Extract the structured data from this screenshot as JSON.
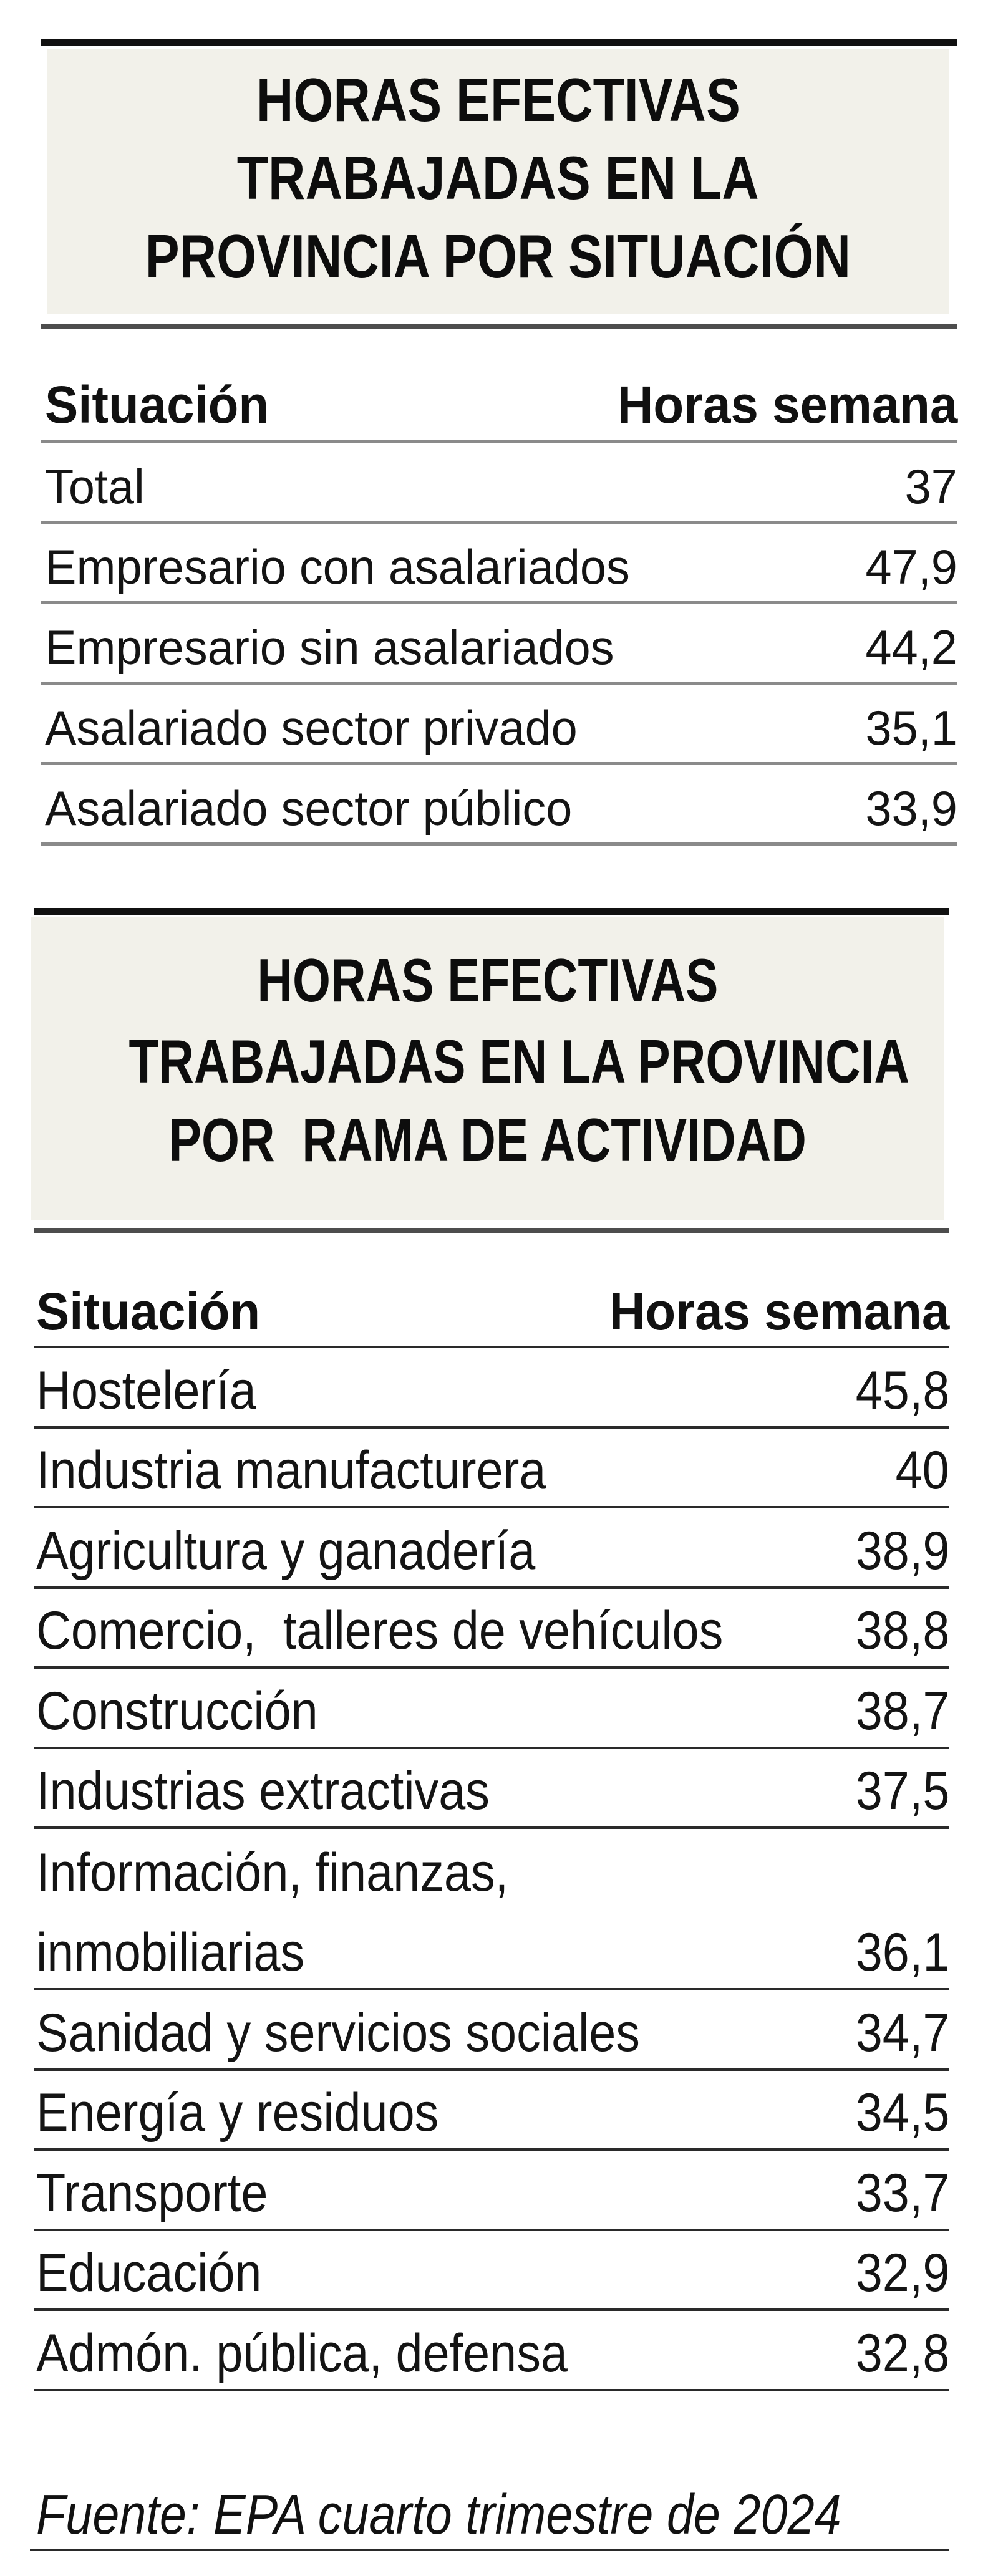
{
  "table_situacion": {
    "title_lines": [
      "HORAS EFECTIVAS",
      "TRABAJADAS EN LA",
      "PROVINCIA POR SITUACIÓN"
    ],
    "col_label": "Situación",
    "col_value": "Horas semana",
    "rows": [
      {
        "label": "Total",
        "value": "37"
      },
      {
        "label": "Empresario con asalariados",
        "value": "47,9"
      },
      {
        "label": "Empresario sin asalariados",
        "value": "44,2"
      },
      {
        "label": "Asalariado sector privado",
        "value": "35,1"
      },
      {
        "label": "Asalariado sector público",
        "value": "33,9"
      }
    ]
  },
  "table_rama": {
    "title_lines": [
      "HORAS EFECTIVAS",
      "TRABAJADAS EN LA PROVINCIA",
      "POR  RAMA DE ACTIVIDAD"
    ],
    "col_label": "Situación",
    "col_value": "Horas semana",
    "rows": [
      {
        "label": "Hostelería",
        "value": "45,8"
      },
      {
        "label": "Industria manufacturera",
        "value": "40"
      },
      {
        "label": "Agricultura y ganadería",
        "value": "38,9"
      },
      {
        "label": "Comercio,  talleres de vehículos",
        "value": "38,8"
      },
      {
        "label": "Construcción",
        "value": "38,7"
      },
      {
        "label": "Industrias extractivas",
        "value": "37,5"
      },
      {
        "label": "Información, finanzas,",
        "label_line2": "inmobiliarias",
        "value": "36,1"
      },
      {
        "label": "Sanidad y servicios sociales",
        "value": "34,7"
      },
      {
        "label": "Energía y residuos",
        "value": "34,5"
      },
      {
        "label": "Transporte",
        "value": "33,7"
      },
      {
        "label": "Educación",
        "value": "32,9"
      },
      {
        "label": "Admón. pública, defensa",
        "value": "32,8"
      }
    ]
  },
  "footer": {
    "source": "Fuente: EPA cuarto trimestre de 2024"
  },
  "chart_data": [
    {
      "type": "table",
      "title": "HORAS EFECTIVAS TRABAJADAS EN LA PROVINCIA POR SITUACIÓN",
      "columns": [
        "Situación",
        "Horas semana"
      ],
      "categories": [
        "Total",
        "Empresario con asalariados",
        "Empresario sin asalariados",
        "Asalariado sector privado",
        "Asalariado sector público"
      ],
      "values": [
        37,
        47.9,
        44.2,
        35.1,
        33.9
      ]
    },
    {
      "type": "table",
      "title": "HORAS EFECTIVAS TRABAJADAS EN LA PROVINCIA POR RAMA DE ACTIVIDAD",
      "columns": [
        "Situación",
        "Horas semana"
      ],
      "categories": [
        "Hostelería",
        "Industria manufacturera",
        "Agricultura y ganadería",
        "Comercio, talleres de vehículos",
        "Construcción",
        "Industrias extractivas",
        "Información, finanzas, inmobiliarias",
        "Sanidad y servicios sociales",
        "Energía y residuos",
        "Transporte",
        "Educación",
        "Admón. pública, defensa"
      ],
      "values": [
        45.8,
        40,
        38.9,
        38.8,
        38.7,
        37.5,
        36.1,
        34.7,
        34.5,
        33.7,
        32.9,
        32.8
      ]
    }
  ]
}
